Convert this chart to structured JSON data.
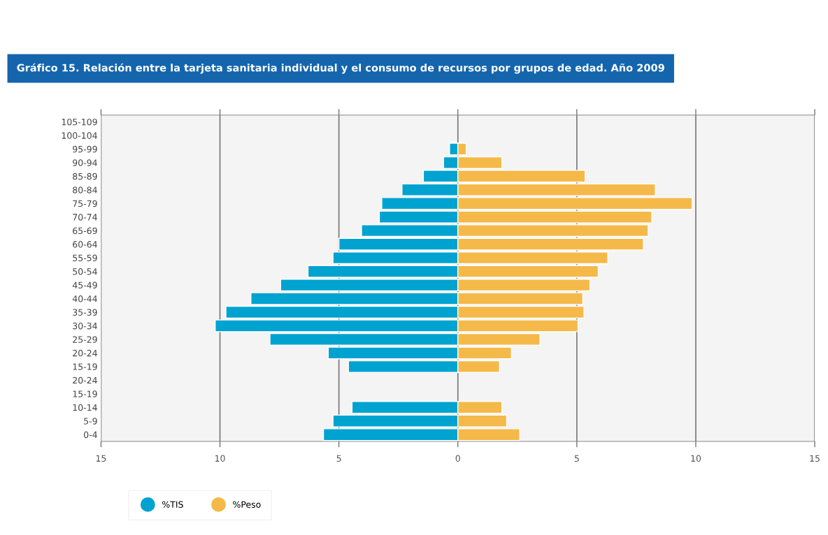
{
  "chart_data": {
    "type": "bar",
    "orientation": "horizontal",
    "stacked": true,
    "title": "Gráfico 15. Relación entre la tarjeta sanitaria individual y el consumo de recursos por grupos de edad. Año 2009",
    "categories": [
      "105-109",
      "100-104",
      "95-99",
      "90-94",
      "85-89",
      "80-84",
      "75-79",
      "70-74",
      "65-69",
      "60-64",
      "55-59",
      "50-54",
      "45-49",
      "40-44",
      "35-39",
      "30-34",
      "25-29",
      "20-24",
      "15-19",
      "20-24",
      "15-19",
      "10-14",
      "5-9",
      "0-4"
    ],
    "series": [
      {
        "name": "%TIS",
        "color": "#00a3d0",
        "values": [
          null,
          null,
          -0.35,
          -0.6,
          -1.45,
          -2.35,
          -3.2,
          -3.3,
          -4.05,
          -5.0,
          -5.25,
          -6.3,
          -7.45,
          -8.7,
          -9.75,
          -10.2,
          -7.9,
          -5.45,
          -4.6,
          null,
          null,
          -4.45,
          -5.25,
          -5.65
        ]
      },
      {
        "name": "%Peso",
        "color": "#f5b94a",
        "values": [
          null,
          null,
          0.35,
          1.85,
          5.35,
          8.3,
          9.85,
          8.15,
          8.0,
          7.8,
          6.3,
          5.9,
          5.55,
          5.25,
          5.3,
          5.05,
          3.45,
          2.25,
          1.75,
          null,
          null,
          1.85,
          2.05,
          2.6
        ]
      }
    ],
    "xlim": [
      -15,
      15
    ],
    "xticks": [
      {
        "value": -15,
        "label": "15"
      },
      {
        "value": -10,
        "label": "10"
      },
      {
        "value": -5,
        "label": "5"
      },
      0,
      5,
      10,
      15
    ],
    "grid": "x",
    "legend": "bottom left"
  }
}
